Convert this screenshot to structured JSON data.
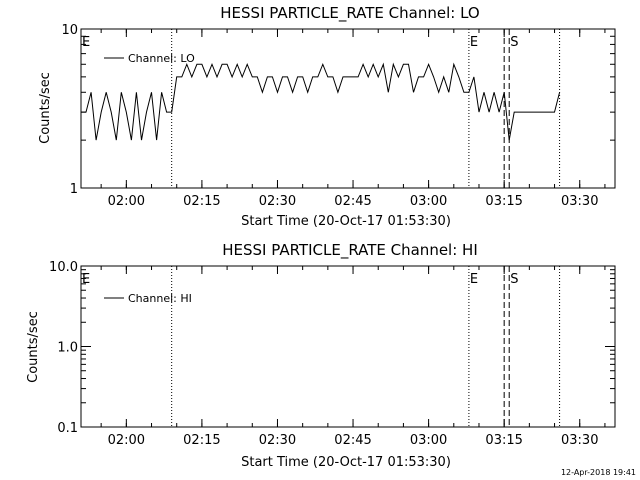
{
  "footer": {
    "timestamp": "12-Apr-2018 19:41"
  },
  "chart_data": [
    {
      "type": "line",
      "title": "HESSI PARTICLE_RATE Channel: LO",
      "xlabel": "Start Time (20-Oct-17 01:53:30)",
      "ylabel": "Counts/sec",
      "yscale": "log",
      "ylim": [
        1,
        10
      ],
      "xlim_minutes": [
        -2.5,
        103.5
      ],
      "ytick_labels": [
        "1",
        "10"
      ],
      "ytick_values": [
        1,
        10
      ],
      "xtick_labels": [
        "02:00",
        "02:15",
        "02:30",
        "02:45",
        "03:00",
        "03:15",
        "03:30"
      ],
      "xtick_minutes": [
        6.5,
        21.5,
        36.5,
        51.5,
        66.5,
        81.5,
        96.5
      ],
      "legend": {
        "label": "Channel: LO",
        "placement": "top-left"
      },
      "markers": [
        {
          "label": "E",
          "minute": -2.5,
          "style": "dotted"
        },
        {
          "label": "",
          "minute": 15.5,
          "style": "dotted"
        },
        {
          "label": "E",
          "minute": 74.5,
          "style": "dotted"
        },
        {
          "label": "",
          "minute": 81.5,
          "style": "dashed"
        },
        {
          "label": "S",
          "minute": 82.5,
          "style": "dashed"
        },
        {
          "label": "",
          "minute": 92.5,
          "style": "dotted"
        }
      ],
      "series": [
        {
          "name": "Channel: LO",
          "x_minutes": [
            -2.5,
            -1.5,
            -0.5,
            0.5,
            1.5,
            2.5,
            3.5,
            4.5,
            5.5,
            6.5,
            7.5,
            8.5,
            9.5,
            10.5,
            11.5,
            12.5,
            13.5,
            14.5,
            15.5,
            16.5,
            17.5,
            18.5,
            19.5,
            20.5,
            21.5,
            22.5,
            23.5,
            24.5,
            25.5,
            26.5,
            27.5,
            28.5,
            29.5,
            30.5,
            31.5,
            32.5,
            33.5,
            34.5,
            35.5,
            36.5,
            37.5,
            38.5,
            39.5,
            40.5,
            41.5,
            42.5,
            43.5,
            44.5,
            45.5,
            46.5,
            47.5,
            48.5,
            49.5,
            50.5,
            51.5,
            52.5,
            53.5,
            54.5,
            55.5,
            56.5,
            57.5,
            58.5,
            59.5,
            60.5,
            61.5,
            62.5,
            63.5,
            64.5,
            65.5,
            66.5,
            67.5,
            68.5,
            69.5,
            70.5,
            71.5,
            72.5,
            73.5,
            74.5,
            75.5,
            76.5,
            77.5,
            78.5,
            79.5,
            80.5,
            81.5,
            82.5,
            83.5,
            84.5,
            85.5,
            86.5,
            87.5,
            88.5,
            89.5,
            90.5,
            91.5,
            92.5
          ],
          "y": [
            3,
            3,
            4,
            2,
            3,
            4,
            3,
            2,
            4,
            3,
            2,
            4,
            2,
            3,
            4,
            2,
            4,
            3,
            3,
            5,
            5,
            6,
            5,
            6,
            6,
            5,
            6,
            5,
            6,
            6,
            5,
            6,
            5,
            6,
            5,
            5,
            4,
            5,
            5,
            4,
            5,
            5,
            4,
            5,
            5,
            4,
            5,
            5,
            6,
            5,
            5,
            4,
            5,
            5,
            5,
            5,
            6,
            5,
            6,
            5,
            6,
            4,
            6,
            5,
            6,
            6,
            4,
            5,
            5,
            6,
            5,
            4,
            5,
            4,
            6,
            5,
            4,
            4,
            5,
            3,
            4,
            3,
            4,
            3,
            4,
            2,
            3,
            3,
            3,
            3,
            3,
            3,
            3,
            3,
            3,
            4
          ]
        }
      ]
    },
    {
      "type": "line",
      "title": "HESSI PARTICLE_RATE Channel: HI",
      "xlabel": "Start Time (20-Oct-17 01:53:30)",
      "ylabel": "Counts/sec",
      "yscale": "log",
      "ylim": [
        0.1,
        10
      ],
      "xlim_minutes": [
        -2.5,
        103.5
      ],
      "ytick_labels": [
        "0.1",
        "1.0",
        "10.0"
      ],
      "ytick_values": [
        0.1,
        1,
        10
      ],
      "xtick_labels": [
        "02:00",
        "02:15",
        "02:30",
        "02:45",
        "03:00",
        "03:15",
        "03:30"
      ],
      "xtick_minutes": [
        6.5,
        21.5,
        36.5,
        51.5,
        66.5,
        81.5,
        96.5
      ],
      "legend": {
        "label": "Channel: HI",
        "placement": "top-left"
      },
      "markers": [
        {
          "label": "E",
          "minute": -2.5,
          "style": "dotted"
        },
        {
          "label": "",
          "minute": 15.5,
          "style": "dotted"
        },
        {
          "label": "E",
          "minute": 74.5,
          "style": "dotted"
        },
        {
          "label": "",
          "minute": 81.5,
          "style": "dashed"
        },
        {
          "label": "S",
          "minute": 82.5,
          "style": "dashed"
        },
        {
          "label": "",
          "minute": 92.5,
          "style": "dotted"
        }
      ],
      "series": []
    }
  ]
}
